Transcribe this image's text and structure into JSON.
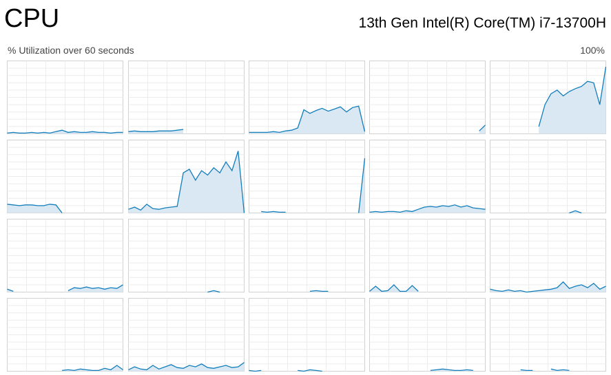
{
  "header": {
    "title": "CPU",
    "processor": "13th Gen Intel(R) Core(TM) i7-13700H"
  },
  "graph_header": {
    "caption": "% Utilization over 60 seconds",
    "max_label": "100%"
  },
  "ylim": [
    0,
    100
  ],
  "line_color": "#117dbb",
  "fill_color": "#d9e8f3",
  "graphs": [
    {
      "values": [
        1,
        2,
        1,
        1,
        2,
        1,
        2,
        1,
        3,
        5,
        2,
        3,
        2,
        2,
        3,
        2,
        2,
        1,
        2,
        2
      ]
    },
    {
      "values": [
        3,
        4,
        3,
        3,
        3,
        4,
        4,
        4,
        5,
        6,
        null,
        null,
        null,
        null,
        null,
        null,
        null,
        null,
        null,
        null
      ]
    },
    {
      "values": [
        2,
        2,
        2,
        2,
        3,
        2,
        4,
        5,
        8,
        33,
        28,
        32,
        35,
        31,
        34,
        37,
        30,
        36,
        38,
        3
      ]
    },
    {
      "values": [
        null,
        null,
        null,
        null,
        null,
        null,
        null,
        null,
        null,
        null,
        null,
        null,
        null,
        null,
        null,
        null,
        null,
        null,
        4,
        12
      ]
    },
    {
      "values": [
        null,
        null,
        null,
        null,
        null,
        null,
        null,
        null,
        10,
        40,
        55,
        60,
        52,
        58,
        62,
        65,
        72,
        70,
        40,
        92
      ]
    },
    {
      "values": [
        12,
        11,
        10,
        11,
        11,
        10,
        10,
        12,
        11,
        0,
        null,
        null,
        null,
        null,
        null,
        null,
        null,
        null,
        null,
        null
      ]
    },
    {
      "values": [
        5,
        8,
        4,
        12,
        6,
        5,
        7,
        8,
        9,
        55,
        60,
        45,
        58,
        52,
        62,
        55,
        70,
        58,
        85,
        0
      ]
    },
    {
      "values": [
        null,
        null,
        2,
        1,
        2,
        1,
        1,
        null,
        null,
        null,
        null,
        null,
        null,
        null,
        null,
        null,
        null,
        null,
        0,
        75
      ]
    },
    {
      "values": [
        1,
        2,
        1,
        2,
        2,
        1,
        3,
        2,
        5,
        8,
        9,
        8,
        10,
        9,
        11,
        8,
        10,
        7,
        6,
        5
      ]
    },
    {
      "values": [
        null,
        null,
        null,
        null,
        null,
        null,
        null,
        null,
        null,
        null,
        null,
        null,
        null,
        0,
        3,
        0,
        null,
        null,
        null,
        null
      ]
    },
    {
      "values": [
        4,
        1,
        null,
        null,
        null,
        null,
        null,
        null,
        null,
        null,
        2,
        6,
        5,
        7,
        5,
        6,
        4,
        6,
        5,
        10
      ]
    },
    {
      "values": [
        null,
        null,
        null,
        null,
        null,
        null,
        null,
        null,
        null,
        null,
        null,
        null,
        null,
        0,
        2,
        0,
        null,
        null,
        null,
        null
      ]
    },
    {
      "values": [
        null,
        null,
        null,
        null,
        null,
        null,
        null,
        null,
        null,
        null,
        1,
        2,
        1,
        1,
        null,
        null,
        null,
        null,
        null,
        null
      ]
    },
    {
      "values": [
        1,
        8,
        1,
        2,
        10,
        1,
        1,
        9,
        1,
        null,
        null,
        null,
        null,
        null,
        null,
        null,
        null,
        null,
        null,
        null
      ]
    },
    {
      "values": [
        4,
        2,
        1,
        3,
        1,
        2,
        0,
        1,
        2,
        3,
        4,
        6,
        14,
        5,
        8,
        10,
        6,
        12,
        4,
        8
      ]
    },
    {
      "values": [
        null,
        null,
        null,
        null,
        null,
        null,
        null,
        null,
        null,
        1,
        2,
        1,
        3,
        2,
        1,
        1,
        4,
        2,
        8,
        2
      ]
    },
    {
      "values": [
        2,
        6,
        3,
        2,
        8,
        3,
        6,
        9,
        5,
        4,
        8,
        6,
        10,
        5,
        4,
        6,
        8,
        5,
        6,
        12
      ]
    },
    {
      "values": [
        1,
        0,
        1,
        null,
        null,
        null,
        null,
        null,
        1,
        0,
        2,
        1,
        0,
        null,
        null,
        null,
        null,
        null,
        null,
        null
      ]
    },
    {
      "values": [
        null,
        null,
        null,
        null,
        null,
        null,
        null,
        null,
        null,
        null,
        1,
        2,
        3,
        2,
        1,
        1,
        2,
        1,
        null,
        null
      ]
    },
    {
      "values": [
        null,
        null,
        null,
        null,
        null,
        2,
        1,
        1,
        null,
        null,
        3,
        1,
        2,
        1,
        null,
        null,
        null,
        null,
        null,
        null
      ]
    }
  ]
}
